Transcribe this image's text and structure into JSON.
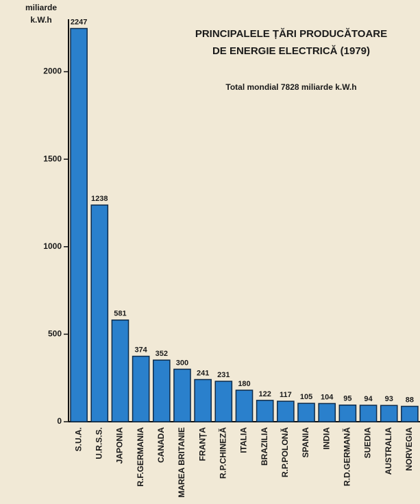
{
  "chart_data": {
    "type": "bar",
    "title": [
      "PRINCIPALELE ȚĂRI PRODUCĂTOARE",
      "DE ENERGIE ELECTRICĂ (1979)"
    ],
    "subtitle": "Total mondial 7828 miliarde k.W.h",
    "y_label": [
      "miliarde",
      "k.W.h"
    ],
    "categories": [
      "S.U.A.",
      "U.R.S.S.",
      "JAPONIA",
      "R.F.GERMANIA",
      "CANADA",
      "MAREA BRITANIE",
      "FRANȚA",
      "R.P.CHINEZĂ",
      "ITALIA",
      "BRAZILIA",
      "R.P.POLONĂ",
      "SPANIA",
      "INDIA",
      "R.D.GERMANĂ",
      "SUEDIA",
      "AUSTRALIA",
      "NORVEGIA"
    ],
    "values": [
      2247,
      1238,
      581,
      374,
      352,
      300,
      241,
      231,
      180,
      122,
      117,
      105,
      104,
      95,
      94,
      93,
      88
    ],
    "color": "#2a80cc",
    "ylim": [
      0,
      2300
    ],
    "yticks": [
      0,
      500,
      1000,
      1500,
      2000
    ],
    "grid": false
  }
}
